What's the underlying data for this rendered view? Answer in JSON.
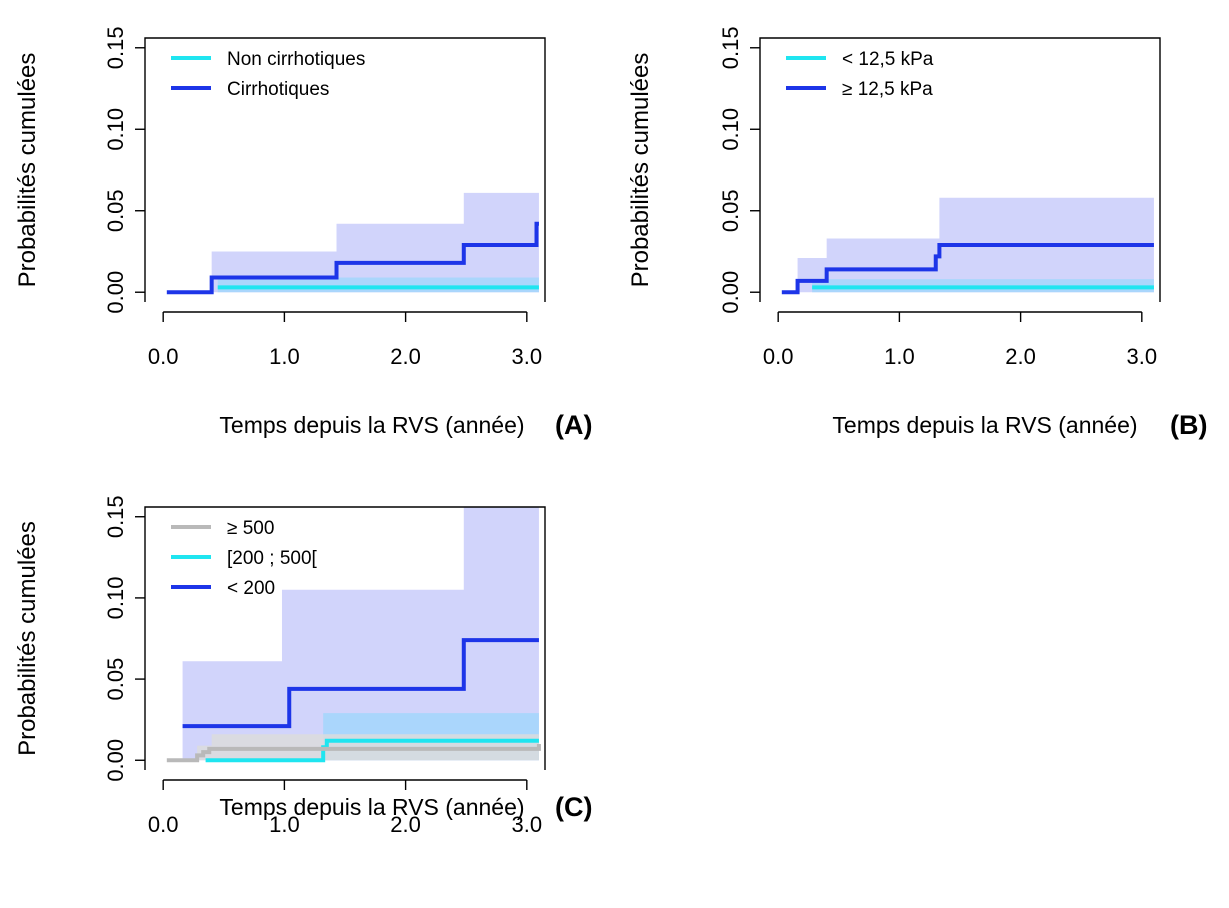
{
  "colors": {
    "cyan": "#1fe5f0",
    "blue": "#1d35e8",
    "gray": "#b9b9b9",
    "ci_blue": "#c9cdfa",
    "ci_cyan": "#a3d6fb",
    "ci_gray": "#dcdcdc"
  },
  "chart_data": [
    {
      "panel": "(A)",
      "type": "line",
      "step": true,
      "xlabel": "Temps depuis la RVS (année)",
      "ylabel": "Probabilités cumulées",
      "xlim": [
        0,
        3.1
      ],
      "ylim": [
        0,
        0.15
      ],
      "xticks": [
        "0.0",
        "1.0",
        "2.0",
        "3.0"
      ],
      "xtick_values": [
        0,
        1,
        2,
        3
      ],
      "yticks": [
        "0.00",
        "0.05",
        "0.10",
        "0.15"
      ],
      "ytick_values": [
        0,
        0.05,
        0.1,
        0.15
      ],
      "legend_position": "top-left",
      "legend": [
        "Non cirrhotiques",
        "Cirrhotiques"
      ],
      "series": [
        {
          "name": "Cirrhotiques",
          "color": "blue",
          "x": [
            0.03,
            0.4,
            1.43,
            2.48,
            3.08,
            3.1
          ],
          "y": [
            0,
            0.009,
            0.018,
            0.029,
            0.042,
            0.042
          ],
          "ci_color": "ci_blue",
          "ci_upper_x": [
            0.03,
            0.4,
            1.1,
            1.43,
            2.43,
            2.48,
            3.1
          ],
          "ci_upper_y": [
            0,
            0.025,
            0.025,
            0.042,
            0.042,
            0.061,
            0.083
          ],
          "ci_lower": 0
        },
        {
          "name": "Non cirrhotiques",
          "color": "cyan",
          "x": [
            0.45,
            3.1
          ],
          "y": [
            0.003,
            0.003
          ],
          "ci_color": "ci_cyan",
          "ci_upper_x": [
            0.45,
            3.1
          ],
          "ci_upper_y": [
            0.009,
            0.009
          ],
          "ci_lower": 0
        }
      ]
    },
    {
      "panel": "(B)",
      "type": "line",
      "step": true,
      "xlabel": "Temps depuis la RVS (année)",
      "ylabel": "Probabilités cumulées",
      "xlim": [
        0,
        3.1
      ],
      "ylim": [
        0,
        0.15
      ],
      "xticks": [
        "0.0",
        "1.0",
        "2.0",
        "3.0"
      ],
      "xtick_values": [
        0,
        1,
        2,
        3
      ],
      "yticks": [
        "0.00",
        "0.05",
        "0.10",
        "0.15"
      ],
      "ytick_values": [
        0,
        0.05,
        0.1,
        0.15
      ],
      "legend_position": "top-left",
      "legend": [
        "< 12,5 kPa",
        "≥ 12,5 kPa"
      ],
      "series": [
        {
          "name": "≥ 12,5 kPa",
          "color": "blue",
          "x": [
            0.03,
            0.16,
            0.4,
            1.3,
            1.33,
            3.1
          ],
          "y": [
            0,
            0.007,
            0.014,
            0.022,
            0.029,
            0.029
          ],
          "ci_color": "ci_blue",
          "ci_upper_x": [
            0.03,
            0.16,
            0.4,
            1.28,
            1.33,
            2.42,
            3.1
          ],
          "ci_upper_y": [
            0,
            0.021,
            0.033,
            0.033,
            0.058,
            0.058,
            0.073
          ],
          "ci_lower": 0
        },
        {
          "name": "< 12,5 kPa",
          "color": "cyan",
          "x": [
            0.28,
            3.1
          ],
          "y": [
            0.003,
            0.003
          ],
          "ci_color": "ci_cyan",
          "ci_upper_x": [
            0.28,
            3.1
          ],
          "ci_upper_y": [
            0.008,
            0.008
          ],
          "ci_lower": 0
        }
      ]
    },
    {
      "panel": "(C)",
      "type": "line",
      "step": true,
      "xlabel": "Temps depuis la RVS (année)",
      "ylabel": "Probabilités cumulées",
      "xlim": [
        0,
        3.1
      ],
      "ylim": [
        0,
        0.15
      ],
      "xticks": [
        "0.0",
        "1.0",
        "2.0",
        "3.0"
      ],
      "xtick_values": [
        0,
        1,
        2,
        3
      ],
      "yticks": [
        "0.00",
        "0.05",
        "0.10",
        "0.15"
      ],
      "ytick_values": [
        0,
        0.05,
        0.1,
        0.15
      ],
      "legend_position": "top-left",
      "legend": [
        "≥ 500",
        "[200 ; 500[",
        "< 200"
      ],
      "series": [
        {
          "name": "< 200",
          "color": "blue",
          "x": [
            0.16,
            1.04,
            2.48,
            3.1
          ],
          "y": [
            0.021,
            0.044,
            0.074,
            0.074
          ],
          "ci_color": "ci_blue",
          "ci_upper_x": [
            0.16,
            0.98,
            2.02,
            2.48,
            3.1
          ],
          "ci_upper_y": [
            0.061,
            0.105,
            0.105,
            0.165,
            0.165
          ],
          "ci_lower": 0
        },
        {
          "name": "[200 ; 500[",
          "color": "cyan",
          "x": [
            0.35,
            1.32,
            1.35,
            3.1
          ],
          "y": [
            0,
            0.008,
            0.012,
            0.012
          ],
          "ci_color": "ci_cyan",
          "ci_upper_x": [
            0.35,
            1.32,
            2.58,
            3.1
          ],
          "ci_upper_y": [
            0,
            0.029,
            0.029,
            0.044
          ],
          "ci_lower": 0
        },
        {
          "name": "≥ 500",
          "color": "gray",
          "x": [
            0.03,
            0.28,
            0.33,
            0.38,
            3.1
          ],
          "y": [
            0,
            0.003,
            0.005,
            0.007,
            0.01
          ],
          "ci_color": "ci_gray",
          "ci_upper_x": [
            0.03,
            0.28,
            0.4,
            3.1
          ],
          "ci_upper_y": [
            0,
            0.009,
            0.016,
            0.016
          ],
          "ci_lower": 0
        }
      ]
    }
  ]
}
